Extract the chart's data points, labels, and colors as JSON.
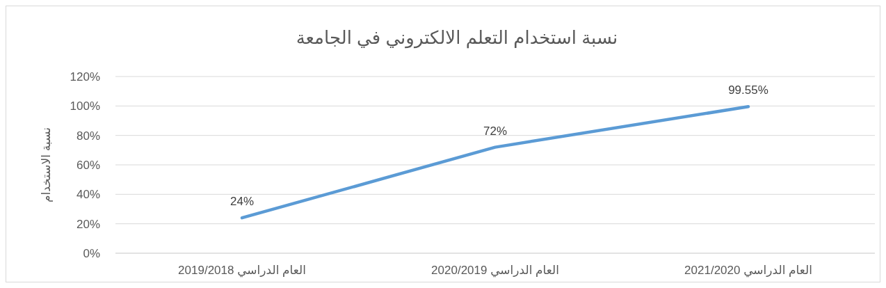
{
  "chart_data": {
    "type": "line",
    "title": "نسبة استخدام التعلم الالكتروني في الجامعة",
    "ylabel": "نسبة الاستخدام",
    "categories": [
      "العام الدراسي 2019/2018",
      "العام الدراسي 2020/2019",
      "العام الدراسي 2021/2020"
    ],
    "series": [
      {
        "color": "#5b9bd5",
        "values": [
          24,
          72,
          99.55
        ],
        "value_labels": [
          "24%",
          "72%",
          "99.55%"
        ]
      }
    ],
    "ylim": [
      0,
      120
    ],
    "yticks": [
      {
        "value": 0,
        "label": "0%"
      },
      {
        "value": 20,
        "label": "20%"
      },
      {
        "value": 40,
        "label": "40%"
      },
      {
        "value": 60,
        "label": "60%"
      },
      {
        "value": 80,
        "label": "80%"
      },
      {
        "value": 100,
        "label": "100%"
      },
      {
        "value": 120,
        "label": "120%"
      }
    ],
    "grid": "y"
  }
}
